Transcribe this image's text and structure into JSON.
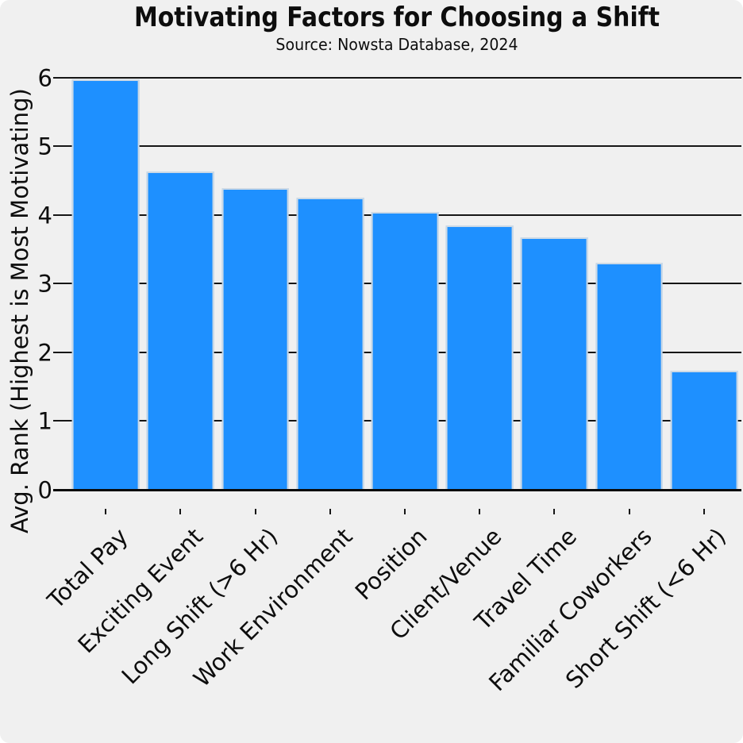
{
  "chart_data": {
    "type": "bar",
    "title": "Motivating Factors for Choosing a Shift",
    "subtitle": "Source: Nowsta Database, 2024",
    "categories": [
      "Total Pay",
      "Exciting Event",
      "Long Shift (>6 Hr)",
      "Work Environment",
      "Position",
      "Client/Venue",
      "Travel Time",
      "Familiar Coworkers",
      "Short Shift (<6 Hr)"
    ],
    "values": [
      5.99,
      4.65,
      4.4,
      4.26,
      4.05,
      3.86,
      3.68,
      3.32,
      1.75
    ],
    "xlabel": "",
    "ylabel": "Avg. Rank (Highest is Most Motivating)",
    "yticks": [
      0,
      1,
      2,
      3,
      4,
      5,
      6
    ],
    "ylim": [
      0,
      6.1
    ],
    "grid": true,
    "legend": false,
    "bar_color": "#1e90ff",
    "bar_edge_color": "#ccd9e5",
    "background_color": "#f0f0f0",
    "grid_color": "#161616",
    "text_color": "#0d0d0d",
    "bar_width_ratio": 0.9
  }
}
